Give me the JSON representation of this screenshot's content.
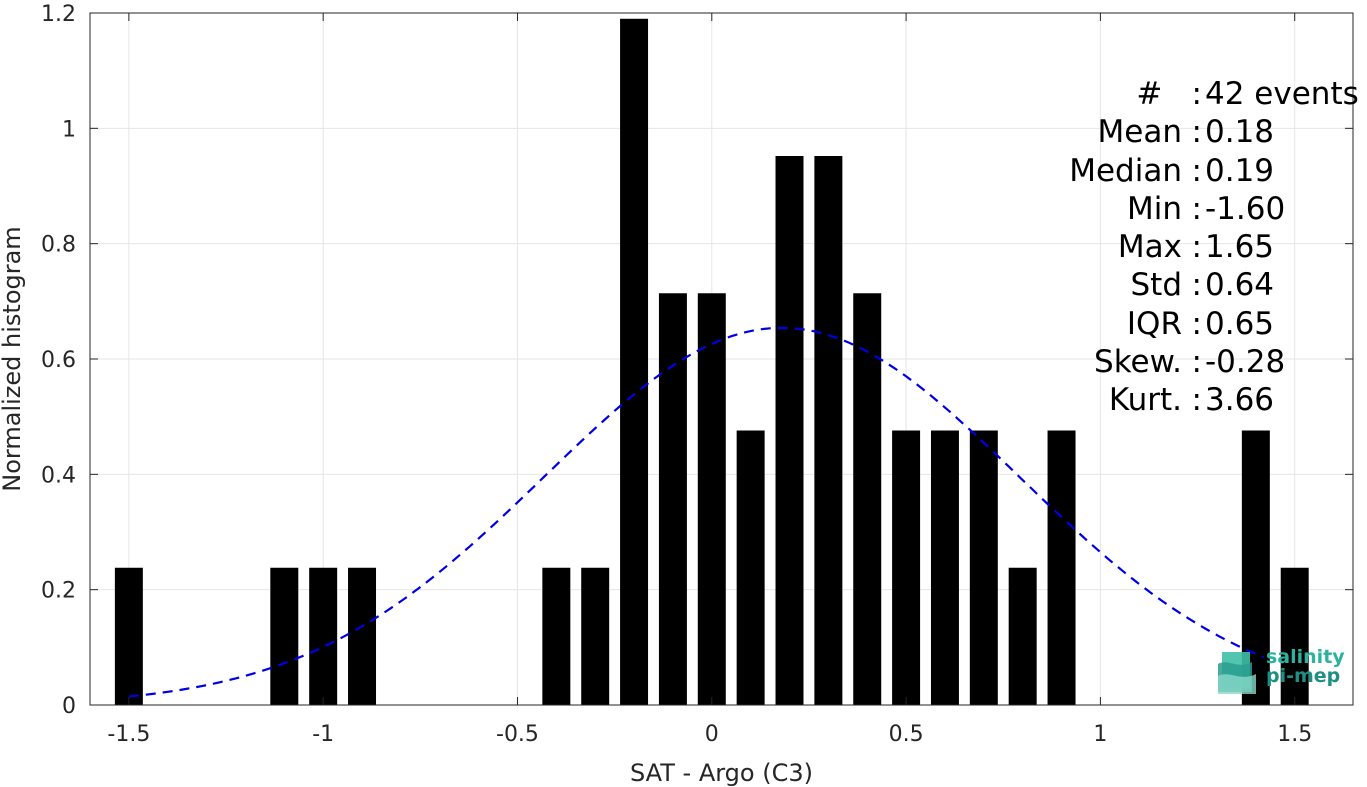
{
  "chart_data": {
    "type": "bar",
    "title": "",
    "xlabel": "SAT - Argo (C3)",
    "ylabel": "Normalized histogram",
    "xlim": [
      -1.6,
      1.65
    ],
    "ylim": [
      0,
      1.2
    ],
    "x_ticks": [
      "-1.5",
      "-1",
      "-0.5",
      "0",
      "0.5",
      "1",
      "1.5"
    ],
    "y_ticks": [
      "0",
      "0.2",
      "0.4",
      "0.6",
      "0.8",
      "1",
      "1.2"
    ],
    "grid": true,
    "bar_color": "#000000",
    "bars": [
      {
        "x": -1.5,
        "value": 0.238
      },
      {
        "x": -1.1,
        "value": 0.238
      },
      {
        "x": -1.0,
        "value": 0.238
      },
      {
        "x": -0.9,
        "value": 0.238
      },
      {
        "x": -0.4,
        "value": 0.238
      },
      {
        "x": -0.3,
        "value": 0.238
      },
      {
        "x": -0.2,
        "value": 1.19
      },
      {
        "x": -0.1,
        "value": 0.714
      },
      {
        "x": 0.0,
        "value": 0.714
      },
      {
        "x": 0.1,
        "value": 0.476
      },
      {
        "x": 0.2,
        "value": 0.952
      },
      {
        "x": 0.3,
        "value": 0.952
      },
      {
        "x": 0.4,
        "value": 0.714
      },
      {
        "x": 0.5,
        "value": 0.476
      },
      {
        "x": 0.6,
        "value": 0.476
      },
      {
        "x": 0.7,
        "value": 0.476
      },
      {
        "x": 0.8,
        "value": 0.238
      },
      {
        "x": 0.9,
        "value": 0.476
      },
      {
        "x": 1.4,
        "value": 0.476
      },
      {
        "x": 1.5,
        "value": 0.238
      }
    ],
    "fit_curve": {
      "style": "dashed",
      "color": "#0000e6",
      "mean": 0.18,
      "std": 0.61,
      "x_range": [
        -1.5,
        1.42
      ]
    }
  },
  "stats": [
    {
      "label": "#  ",
      "value": "42 events"
    },
    {
      "label": "Mean",
      "value": "0.18"
    },
    {
      "label": "Median",
      "value": "0.19"
    },
    {
      "label": "Min",
      "value": "-1.60"
    },
    {
      "label": "Max",
      "value": "1.65"
    },
    {
      "label": "Std",
      "value": "0.64"
    },
    {
      "label": "IQR",
      "value": "0.65"
    },
    {
      "label": "Skew.",
      "value": "-0.28"
    },
    {
      "label": "Kurt.",
      "value": "3.66"
    }
  ],
  "logo": {
    "line1": "salinity",
    "line2": "pi-mep"
  }
}
